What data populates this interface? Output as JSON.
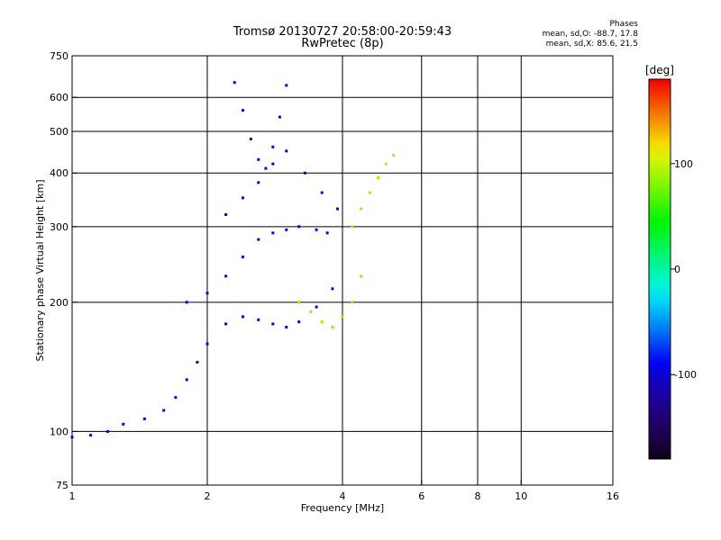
{
  "chart_data": {
    "type": "scatter",
    "title": "Tromsø 20130727 20:58:00-20:59:43",
    "subtitle": "RwPretec (8p)",
    "xlabel": "Frequency [MHz]",
    "ylabel": "Stationary phase Virtual Height [km]",
    "x_scale": "log",
    "y_scale": "log",
    "xlim": [
      1,
      16
    ],
    "ylim": [
      75,
      750
    ],
    "xticks": [
      1,
      2,
      4,
      6,
      8,
      10,
      16
    ],
    "xtick_labels": [
      "1",
      "2",
      "4",
      "6",
      "8",
      "10",
      "16"
    ],
    "yticks": [
      75,
      100,
      200,
      300,
      400,
      500,
      600,
      750
    ],
    "ytick_labels": [
      "75",
      "100",
      "200",
      "300",
      "400",
      "500",
      "600",
      "750"
    ],
    "grid": true,
    "colorbar": {
      "label": "[deg]",
      "range": [
        -180,
        180
      ],
      "ticks": [
        100,
        0,
        -100
      ],
      "tick_labels": [
        "100",
        "0",
        "-100"
      ]
    },
    "stats": {
      "heading": "Phases",
      "line_o": "mean, sd,O: -88.7, 17.8",
      "line_x": "mean, sd,X: 85.6, 21.5"
    },
    "traces": [
      {
        "phase": -100,
        "points": [
          [
            1.0,
            97
          ],
          [
            1.1,
            98
          ],
          [
            1.2,
            100
          ],
          [
            1.3,
            104
          ],
          [
            1.45,
            107
          ],
          [
            1.6,
            112
          ],
          [
            1.7,
            120
          ],
          [
            1.8,
            132
          ],
          [
            1.9,
            145
          ],
          [
            2.0,
            160
          ],
          [
            2.2,
            178
          ],
          [
            2.4,
            185
          ],
          [
            2.6,
            182
          ],
          [
            2.8,
            178
          ],
          [
            3.0,
            175
          ],
          [
            3.2,
            180
          ],
          [
            3.5,
            195
          ],
          [
            3.8,
            215
          ]
        ]
      },
      {
        "phase": -100,
        "points": [
          [
            1.8,
            200
          ],
          [
            2.0,
            210
          ],
          [
            2.2,
            230
          ],
          [
            2.4,
            255
          ],
          [
            2.6,
            280
          ],
          [
            2.8,
            290
          ],
          [
            3.0,
            295
          ],
          [
            3.2,
            300
          ],
          [
            3.5,
            295
          ],
          [
            3.7,
            290
          ]
        ]
      },
      {
        "phase": -110,
        "points": [
          [
            2.2,
            320
          ],
          [
            2.4,
            350
          ],
          [
            2.6,
            380
          ],
          [
            2.8,
            420
          ],
          [
            3.0,
            450
          ],
          [
            3.3,
            400
          ],
          [
            3.6,
            360
          ],
          [
            3.9,
            330
          ]
        ]
      },
      {
        "phase": -95,
        "points": [
          [
            2.3,
            650
          ],
          [
            2.4,
            560
          ],
          [
            2.5,
            480
          ],
          [
            2.6,
            430
          ],
          [
            2.7,
            410
          ],
          [
            2.8,
            460
          ],
          [
            2.9,
            540
          ],
          [
            3.0,
            640
          ]
        ]
      },
      {
        "phase": 85,
        "points": [
          [
            3.2,
            200
          ],
          [
            3.4,
            190
          ],
          [
            3.6,
            180
          ],
          [
            3.8,
            175
          ],
          [
            4.0,
            185
          ],
          [
            4.2,
            200
          ],
          [
            4.4,
            230
          ]
        ]
      },
      {
        "phase": 90,
        "points": [
          [
            4.2,
            300
          ],
          [
            4.4,
            330
          ],
          [
            4.6,
            360
          ],
          [
            4.8,
            390
          ],
          [
            5.0,
            420
          ],
          [
            5.2,
            440
          ]
        ]
      }
    ]
  }
}
